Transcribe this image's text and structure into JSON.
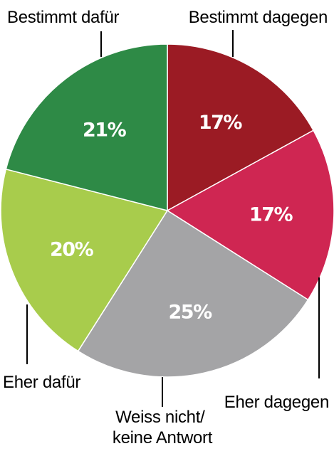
{
  "chart_data": {
    "type": "pie",
    "start_angle_deg": 0,
    "direction": "clockwise",
    "categories": [
      "Bestimmt dagegen",
      "Eher dagegen",
      "Weiss nicht/ keine Antwort",
      "Eher dafür",
      "Bestimmt dafür"
    ],
    "values": [
      17,
      17,
      25,
      20,
      21
    ],
    "value_labels": [
      "17%",
      "17%",
      "25%",
      "20%",
      "21%"
    ],
    "colors": [
      "#9b1b24",
      "#cf2652",
      "#a4a4a6",
      "#a8cc4c",
      "#2e8a46"
    ]
  }
}
